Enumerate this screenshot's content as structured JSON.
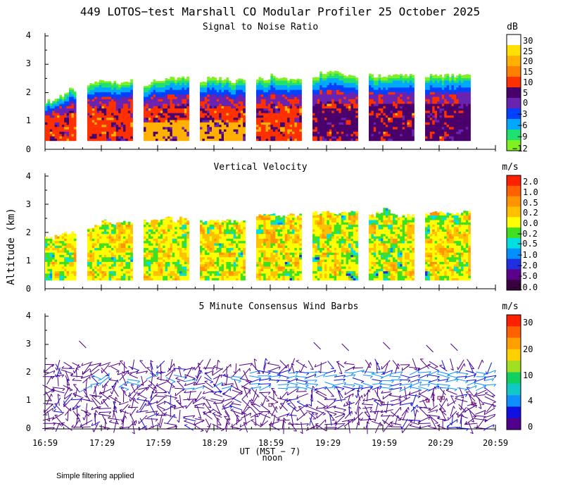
{
  "title": "449 LOTOS−test Marshall CO Modular Profiler 25 October 2025",
  "footnote": "Simple filtering applied",
  "y_axis_label": "Altitude (km)",
  "x_axis": {
    "label": "UT   (MST − 7)",
    "noon_label": "noon",
    "ticks": [
      "16:59",
      "17:29",
      "17:59",
      "18:29",
      "18:59",
      "19:29",
      "19:59",
      "20:29",
      "20:59"
    ],
    "range_min": [
      0,
      240
    ],
    "noon_offset_min": 121
  },
  "gaps": [
    {
      "start_min": 16.5,
      "end_min": 22.5
    },
    {
      "start_min": 46.5,
      "end_min": 52.5
    },
    {
      "start_min": 76.5,
      "end_min": 82.5
    },
    {
      "start_min": 106.5,
      "end_min": 112.5
    },
    {
      "start_min": 136.5,
      "end_min": 142.5
    },
    {
      "start_min": 166.5,
      "end_min": 172.5
    },
    {
      "start_min": 196.5,
      "end_min": 202.5
    }
  ],
  "chart_data": [
    {
      "type": "heatmap",
      "title": "Signal to Noise Ratio",
      "ylabel": "Altitude (km)",
      "ylim": [
        0,
        4
      ],
      "yticks": [
        "0",
        "1",
        "2",
        "3",
        "4"
      ],
      "units": "dB",
      "colorbar": {
        "labels": [
          "30",
          "25",
          "20",
          "15",
          "10",
          "5",
          "0",
          "−3",
          "−6",
          "−9",
          "−12"
        ],
        "colors": [
          "#ffffff",
          "#ffe000",
          "#ffb000",
          "#ff8000",
          "#ff3000",
          "#4a006a",
          "#6a22b0",
          "#0040ff",
          "#00a8ff",
          "#20e070",
          "#80f020"
        ]
      },
      "blocks": [
        {
          "start": 0,
          "end": 16.5,
          "bottom": 0.3,
          "top_km": [
            1.7,
            1.7,
            1.8,
            1.9,
            2.0,
            2.1
          ]
        },
        {
          "start": 22.5,
          "end": 46.5,
          "bottom": 0.3,
          "top_km": [
            2.3,
            2.4,
            2.4,
            2.4,
            2.3,
            2.4
          ]
        },
        {
          "start": 52.5,
          "end": 76.5,
          "bottom": 0.3,
          "top_km": [
            2.3,
            2.4,
            2.4,
            2.5,
            2.5,
            2.5
          ]
        },
        {
          "start": 82.5,
          "end": 106.5,
          "bottom": 0.3,
          "top_km": [
            2.4,
            2.5,
            2.5,
            2.5,
            2.4,
            2.5
          ]
        },
        {
          "start": 112.5,
          "end": 136.5,
          "bottom": 0.3,
          "top_km": [
            2.5,
            2.5,
            2.6,
            2.5,
            2.5,
            2.5
          ]
        },
        {
          "start": 142.5,
          "end": 166.5,
          "bottom": 0.3,
          "top_km": [
            2.6,
            2.7,
            2.7,
            2.7,
            2.6,
            2.6
          ]
        },
        {
          "start": 172.5,
          "end": 196.5,
          "bottom": 0.3,
          "top_km": [
            2.6,
            2.6,
            2.6,
            2.6,
            2.6,
            2.6
          ]
        },
        {
          "start": 202.5,
          "end": 226.5,
          "bottom": 0.3,
          "top_km": [
            2.6,
            2.6,
            2.6,
            2.6,
            2.6,
            2.6
          ]
        }
      ]
    },
    {
      "type": "heatmap",
      "title": "Vertical Velocity",
      "ylabel": "Altitude (km)",
      "ylim": [
        0,
        4
      ],
      "yticks": [
        "0",
        "1",
        "2",
        "3",
        "4"
      ],
      "units": "m/s",
      "colorbar": {
        "labels": [
          "2.0",
          "1.0",
          "0.5",
          "0.2",
          "0.0",
          "−0.2",
          "−0.5",
          "−1.0",
          "−2.0",
          "−5.0",
          "−10.0"
        ],
        "colors": [
          "#ff2000",
          "#ff6000",
          "#ff9400",
          "#ffc000",
          "#ffff00",
          "#40e020",
          "#00e0e0",
          "#0090ff",
          "#2030e0",
          "#5a008a",
          "#3a0040"
        ]
      },
      "blocks": [
        {
          "start": 0,
          "end": 16.5,
          "bottom": 0.3,
          "top_km": [
            1.8,
            1.8,
            1.9,
            1.9,
            2.0,
            2.0
          ]
        },
        {
          "start": 22.5,
          "end": 46.5,
          "bottom": 0.3,
          "top_km": [
            2.2,
            2.3,
            2.4,
            2.3,
            2.4,
            2.4
          ]
        },
        {
          "start": 52.5,
          "end": 76.5,
          "bottom": 0.3,
          "top_km": [
            2.4,
            2.5,
            2.5,
            2.5,
            2.4,
            2.5
          ]
        },
        {
          "start": 82.5,
          "end": 106.5,
          "bottom": 0.3,
          "top_km": [
            2.4,
            2.4,
            2.4,
            2.4,
            2.4,
            2.4
          ]
        },
        {
          "start": 112.5,
          "end": 136.5,
          "bottom": 0.3,
          "top_km": [
            2.6,
            2.6,
            2.6,
            2.6,
            2.6,
            2.6
          ]
        },
        {
          "start": 142.5,
          "end": 166.5,
          "bottom": 0.3,
          "top_km": [
            2.7,
            2.7,
            2.7,
            2.7,
            2.7,
            2.7
          ]
        },
        {
          "start": 172.5,
          "end": 196.5,
          "bottom": 0.3,
          "top_km": [
            2.6,
            2.7,
            2.8,
            2.7,
            2.6,
            2.6
          ]
        },
        {
          "start": 202.5,
          "end": 226.5,
          "bottom": 0.3,
          "top_km": [
            2.7,
            2.7,
            2.7,
            2.7,
            2.7,
            2.7
          ]
        }
      ]
    },
    {
      "type": "scatter",
      "title": "5 Minute Consensus Wind Barbs",
      "ylabel": "Altitude (km)",
      "ylim": [
        0,
        4
      ],
      "yticks": [
        "0",
        "1",
        "2",
        "3",
        "4"
      ],
      "units": "m/s",
      "colorbar": {
        "labels": [
          "30",
          "20",
          "10",
          "4",
          "0"
        ],
        "colors": [
          "#ff2000",
          "#ff6000",
          "#ffa000",
          "#ffd000",
          "#a0e020",
          "#10d060",
          "#10c8c8",
          "#1090ff",
          "#1010e0",
          "#50008a"
        ]
      },
      "barb_speed_ms": [
        {
          "alt_km": 0.2,
          "speed": 3
        },
        {
          "alt_km": 1.0,
          "speed": 3
        },
        {
          "alt_km": 1.6,
          "speed": 5
        },
        {
          "alt_km": 1.8,
          "speed": 7
        },
        {
          "alt_km": 2.0,
          "speed": 5
        },
        {
          "alt_km": 2.6,
          "speed": 3
        }
      ]
    }
  ]
}
